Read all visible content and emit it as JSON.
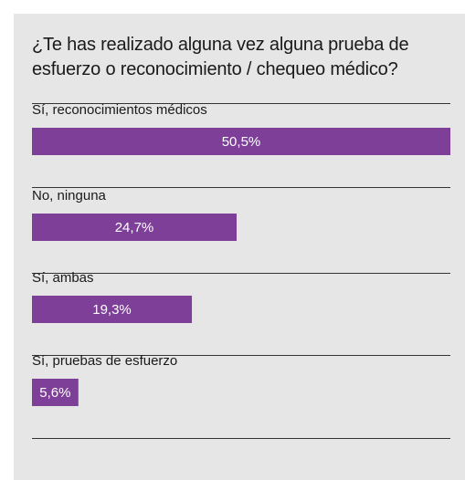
{
  "chart_data": {
    "type": "bar",
    "orientation": "horizontal",
    "title": "¿Te has realizado alguna vez alguna prueba de esfuerzo o reconocimiento / chequeo médico?",
    "categories": [
      "Sí, reconocimientos médicos",
      "No, ninguna",
      "Sí, ambas",
      "Sí, pruebas de esfuerzo"
    ],
    "values": [
      50.5,
      24.7,
      19.3,
      5.6
    ],
    "value_labels": [
      "50,5%",
      "24,7%",
      "19,3%",
      "5,6%"
    ],
    "color": "#7d3f98"
  }
}
